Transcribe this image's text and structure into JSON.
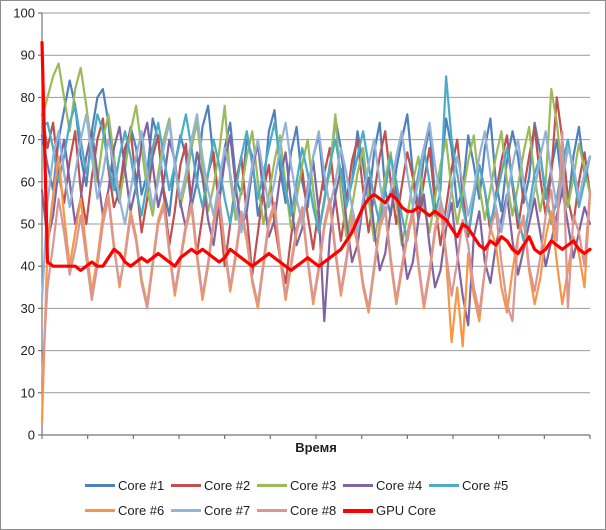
{
  "style": {
    "background": "#FFFFFF",
    "frame_border": "#8C8C8C",
    "axis_color": "#747474",
    "grid_color": "#9A9A9A",
    "text_color": "#1F1F1F"
  },
  "chart_data": {
    "type": "line",
    "title": "",
    "xlabel": "Время",
    "ylabel": "",
    "ylim": [
      0,
      100
    ],
    "ytick_step": 10,
    "ytick_labels": [
      "0",
      "10",
      "20",
      "30",
      "40",
      "50",
      "60",
      "70",
      "80",
      "90",
      "100"
    ],
    "xtick_count": 13,
    "grid": true,
    "legend_position": "bottom",
    "legend_rows": [
      5,
      4
    ],
    "series": [
      {
        "name": "Core #1",
        "color": "#4F81BD",
        "stroke_width": 2.2,
        "values": [
          71,
          64,
          58,
          70,
          77,
          84,
          78,
          66,
          59,
          72,
          80,
          82,
          74,
          60,
          55,
          66,
          73,
          68,
          57,
          62,
          75,
          70,
          58,
          52,
          64,
          71,
          66,
          54,
          60,
          73,
          78,
          65,
          55,
          68,
          74,
          61,
          57,
          70,
          66,
          52,
          58,
          72,
          77,
          63,
          55,
          67,
          73,
          60,
          54,
          66,
          71,
          58,
          62,
          75,
          68,
          56,
          60,
          72,
          64,
          55,
          67,
          74,
          58,
          52,
          63,
          70,
          76,
          62,
          54,
          66,
          73,
          57,
          61,
          75,
          68,
          54,
          58,
          71,
          64,
          56,
          68,
          75,
          60,
          53,
          65,
          72,
          66,
          55,
          61,
          74,
          67,
          56,
          63,
          70,
          58,
          54,
          66,
          73,
          62,
          66
        ]
      },
      {
        "name": "Core #2",
        "color": "#C0504D",
        "stroke_width": 2.2,
        "values": [
          76,
          68,
          74,
          62,
          55,
          65,
          72,
          58,
          50,
          61,
          70,
          75,
          63,
          54,
          58,
          68,
          72,
          60,
          48,
          56,
          66,
          71,
          57,
          45,
          53,
          64,
          69,
          55,
          43,
          52,
          62,
          67,
          54,
          40,
          50,
          60,
          66,
          52,
          38,
          48,
          58,
          64,
          50,
          42,
          36,
          47,
          57,
          63,
          52,
          44,
          54,
          62,
          68,
          56,
          46,
          55,
          65,
          70,
          58,
          48,
          57,
          66,
          72,
          60,
          50,
          59,
          67,
          61,
          51,
          60,
          68,
          55,
          45,
          54,
          63,
          70,
          57,
          47,
          56,
          64,
          58,
          48,
          57,
          65,
          71,
          59,
          49,
          58,
          66,
          73,
          61,
          52,
          62,
          80,
          70,
          56,
          50,
          60,
          67,
          57
        ]
      },
      {
        "name": "Core #3",
        "color": "#9BBB59",
        "stroke_width": 2.2,
        "values": [
          75,
          80,
          85,
          88,
          80,
          72,
          82,
          87,
          78,
          68,
          60,
          70,
          76,
          66,
          56,
          63,
          72,
          78,
          68,
          58,
          52,
          62,
          70,
          75,
          64,
          54,
          60,
          68,
          74,
          63,
          53,
          59,
          67,
          78,
          61,
          51,
          58,
          66,
          72,
          60,
          50,
          57,
          65,
          71,
          59,
          49,
          56,
          64,
          70,
          58,
          48,
          55,
          63,
          76,
          57,
          47,
          54,
          62,
          68,
          56,
          46,
          53,
          61,
          67,
          55,
          45,
          52,
          60,
          66,
          54,
          48,
          56,
          64,
          70,
          58,
          50,
          57,
          65,
          71,
          59,
          51,
          58,
          66,
          72,
          60,
          52,
          59,
          67,
          73,
          61,
          53,
          60,
          82,
          74,
          62,
          54,
          61,
          69,
          63,
          57
        ]
      },
      {
        "name": "Core #4",
        "color": "#8064A2",
        "stroke_width": 2.2,
        "values": [
          58,
          46,
          52,
          63,
          70,
          60,
          50,
          56,
          66,
          72,
          62,
          52,
          58,
          68,
          73,
          63,
          53,
          59,
          69,
          74,
          64,
          54,
          60,
          70,
          65,
          55,
          49,
          57,
          67,
          61,
          51,
          45,
          55,
          65,
          71,
          59,
          49,
          53,
          63,
          69,
          57,
          47,
          51,
          61,
          67,
          55,
          45,
          49,
          59,
          65,
          53,
          27,
          47,
          57,
          63,
          51,
          41,
          45,
          55,
          61,
          49,
          39,
          43,
          53,
          59,
          47,
          37,
          41,
          51,
          57,
          45,
          35,
          39,
          49,
          55,
          43,
          33,
          26,
          47,
          53,
          41,
          36,
          45,
          51,
          57,
          46,
          38,
          44,
          50,
          56,
          48,
          40,
          46,
          52,
          58,
          50,
          42,
          48,
          54,
          50
        ]
      },
      {
        "name": "Core #5",
        "color": "#4BACC6",
        "stroke_width": 2.2,
        "values": [
          73,
          74,
          68,
          60,
          66,
          74,
          78,
          70,
          62,
          68,
          76,
          72,
          64,
          58,
          66,
          72,
          66,
          58,
          52,
          60,
          68,
          74,
          66,
          58,
          64,
          70,
          76,
          68,
          60,
          54,
          62,
          70,
          64,
          56,
          50,
          58,
          66,
          72,
          64,
          56,
          62,
          68,
          74,
          66,
          58,
          52,
          60,
          68,
          62,
          54,
          48,
          56,
          64,
          70,
          62,
          54,
          60,
          66,
          72,
          64,
          56,
          50,
          58,
          66,
          60,
          52,
          46,
          54,
          62,
          68,
          60,
          52,
          58,
          85,
          70,
          62,
          54,
          48,
          56,
          64,
          58,
          50,
          56,
          62,
          68,
          60,
          52,
          46,
          54,
          62,
          66,
          58,
          50,
          56,
          64,
          70,
          62,
          54,
          60,
          66
        ]
      },
      {
        "name": "Core #6",
        "color": "#F79646",
        "stroke_width": 2.2,
        "values": [
          3,
          45,
          57,
          66,
          52,
          40,
          48,
          56,
          44,
          34,
          42,
          52,
          57,
          45,
          35,
          43,
          53,
          47,
          37,
          31,
          41,
          51,
          55,
          43,
          33,
          41,
          49,
          54,
          42,
          32,
          40,
          50,
          56,
          44,
          34,
          42,
          52,
          46,
          36,
          30,
          40,
          50,
          54,
          42,
          32,
          40,
          48,
          53,
          41,
          31,
          39,
          49,
          55,
          43,
          33,
          41,
          51,
          45,
          35,
          29,
          39,
          49,
          53,
          41,
          31,
          39,
          47,
          52,
          40,
          30,
          38,
          48,
          54,
          42,
          22,
          35,
          21,
          43,
          33,
          27,
          39,
          49,
          45,
          35,
          29,
          39,
          47,
          51,
          39,
          31,
          37,
          47,
          53,
          41,
          31,
          39,
          47,
          43,
          35,
          57
        ]
      },
      {
        "name": "Core #7",
        "color": "#95B3D7",
        "stroke_width": 2.2,
        "values": [
          32,
          55,
          66,
          72,
          62,
          54,
          62,
          70,
          76,
          66,
          56,
          62,
          70,
          64,
          56,
          50,
          58,
          66,
          72,
          62,
          54,
          60,
          68,
          74,
          64,
          56,
          62,
          70,
          76,
          66,
          58,
          52,
          60,
          68,
          62,
          54,
          48,
          56,
          64,
          70,
          62,
          54,
          60,
          68,
          74,
          64,
          56,
          50,
          58,
          66,
          72,
          62,
          54,
          60,
          68,
          62,
          54,
          48,
          56,
          64,
          70,
          60,
          52,
          58,
          66,
          72,
          62,
          54,
          60,
          68,
          74,
          64,
          56,
          50,
          58,
          66,
          60,
          52,
          58,
          66,
          72,
          62,
          54,
          48,
          56,
          64,
          70,
          60,
          52,
          58,
          66,
          72,
          62,
          54,
          60,
          68,
          64,
          56,
          62,
          66
        ]
      },
      {
        "name": "Core #8",
        "color": "#D99694",
        "stroke_width": 2.2,
        "values": [
          13,
          35,
          45,
          56,
          48,
          38,
          44,
          52,
          42,
          32,
          40,
          50,
          56,
          44,
          36,
          42,
          52,
          46,
          36,
          30,
          40,
          50,
          54,
          44,
          34,
          42,
          50,
          55,
          43,
          33,
          41,
          51,
          57,
          45,
          35,
          43,
          53,
          47,
          37,
          31,
          41,
          51,
          55,
          43,
          33,
          41,
          49,
          54,
          42,
          32,
          40,
          50,
          56,
          44,
          34,
          42,
          52,
          46,
          36,
          30,
          40,
          50,
          54,
          42,
          32,
          40,
          48,
          53,
          41,
          31,
          39,
          49,
          55,
          43,
          33,
          41,
          51,
          45,
          35,
          29,
          39,
          49,
          53,
          41,
          31,
          27,
          47,
          52,
          40,
          34,
          42,
          52,
          58,
          46,
          72,
          30,
          52,
          48,
          40,
          58
        ]
      },
      {
        "name": "GPU Core",
        "color": "#FF0000",
        "stroke_width": 3.2,
        "values": [
          93,
          41,
          40,
          40,
          40,
          40,
          40,
          39,
          40,
          41,
          40,
          40,
          42,
          44,
          43,
          41,
          40,
          41,
          42,
          41,
          42,
          43,
          42,
          41,
          40,
          42,
          43,
          44,
          43,
          44,
          43,
          42,
          41,
          42,
          44,
          43,
          42,
          41,
          40,
          41,
          42,
          43,
          42,
          41,
          40,
          39,
          40,
          41,
          42,
          41,
          40,
          41,
          42,
          43,
          44,
          46,
          48,
          51,
          54,
          56,
          57,
          56,
          55,
          57,
          56,
          54,
          53,
          53,
          54,
          53,
          52,
          53,
          52,
          51,
          49,
          47,
          50,
          49,
          47,
          45,
          44,
          46,
          45,
          47,
          46,
          44,
          43,
          45,
          47,
          44,
          43,
          44,
          46,
          45,
          44,
          45,
          46,
          44,
          43,
          44
        ]
      }
    ]
  }
}
